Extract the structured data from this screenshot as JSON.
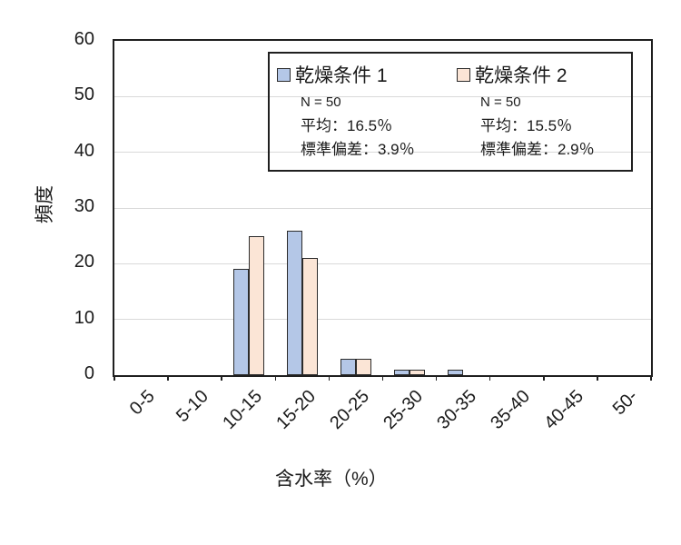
{
  "chart_data": {
    "type": "bar",
    "title": "",
    "categories": [
      "0-5",
      "5-10",
      "10-15",
      "15-20",
      "20-25",
      "25-30",
      "30-35",
      "35-40",
      "40-45",
      "50-"
    ],
    "series": [
      {
        "name": "乾燥条件 1",
        "color": "#B4C7E7",
        "values": [
          0,
          0,
          19,
          26,
          3,
          1,
          1,
          0,
          0,
          0
        ],
        "stats": [
          "N = 50",
          "平均：16.5％",
          "標準偏差：3.9％"
        ]
      },
      {
        "name": "乾燥条件 2",
        "color": "#FBE5D6",
        "values": [
          0,
          0,
          25,
          21,
          3,
          1,
          0,
          0,
          0,
          0
        ],
        "stats": [
          "N = 50",
          "平均：15.5％",
          "標準偏差：2.9％"
        ]
      }
    ],
    "xlabel": "含水率（%）",
    "ylabel": "頻度",
    "ylim": [
      0,
      60
    ],
    "yticks": [
      0,
      10,
      20,
      30,
      40,
      50,
      60
    ],
    "grid": "horizontal",
    "gridline_color": "#D9D9D9",
    "axis_color": "#1F1F1F",
    "bar_border_color": "#2B2B2B",
    "legend_position": "top-right-inside"
  }
}
